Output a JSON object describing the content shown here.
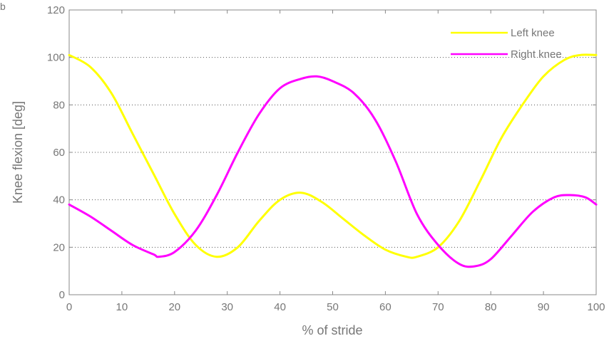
{
  "chart_data": {
    "type": "line",
    "title": "",
    "xlabel": "% of stride",
    "ylabel": "Knee flexion [deg]",
    "xlim": [
      0,
      100
    ],
    "ylim": [
      0,
      120
    ],
    "xticks": [
      0,
      10,
      20,
      30,
      40,
      50,
      60,
      70,
      80,
      90,
      100
    ],
    "yticks": [
      0,
      20,
      40,
      60,
      80,
      100,
      120
    ],
    "grid": "horizontal-dotted",
    "legend_position": "top-right",
    "series": [
      {
        "name": "Left knee",
        "color": "#ffff00",
        "x": [
          0,
          4,
          8,
          12,
          16,
          20,
          24,
          28,
          32,
          36,
          40,
          44,
          48,
          52,
          56,
          60,
          64,
          66,
          70,
          74,
          78,
          82,
          86,
          90,
          94,
          97,
          100
        ],
        "y": [
          101,
          96,
          85,
          68,
          51,
          34,
          21,
          16,
          20,
          31,
          40,
          43,
          39,
          32,
          25,
          19,
          16,
          16,
          20,
          31,
          48,
          66,
          80,
          92,
          99,
          101,
          101
        ]
      },
      {
        "name": "Right knee",
        "color": "#ff00ff",
        "x": [
          0,
          4,
          8,
          12,
          16,
          17,
          20,
          24,
          28,
          32,
          36,
          40,
          44,
          47,
          50,
          54,
          58,
          62,
          66,
          70,
          74,
          77,
          80,
          84,
          88,
          92,
          95,
          98,
          100
        ],
        "y": [
          38,
          33,
          27,
          21,
          17,
          16,
          18,
          27,
          42,
          60,
          76,
          87,
          91,
          92,
          90,
          85,
          74,
          56,
          34,
          21,
          13,
          12,
          15,
          25,
          35,
          41,
          42,
          41,
          38
        ]
      }
    ]
  },
  "corner_mark": "b"
}
